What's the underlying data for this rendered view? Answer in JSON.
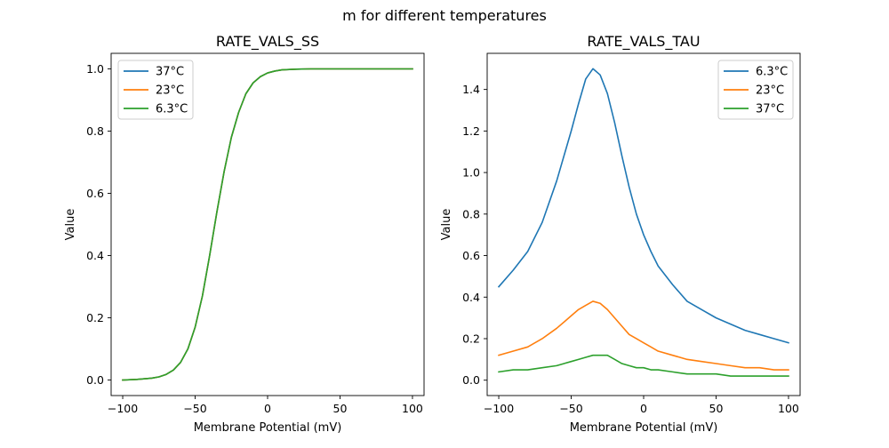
{
  "suptitle": "m for different temperatures",
  "chart_data": [
    {
      "type": "line",
      "title": "RATE_VALS_SS",
      "xlabel": "Membrane Potential (mV)",
      "ylabel": "Value",
      "xlim": [
        -108,
        108
      ],
      "ylim": [
        -0.05,
        1.05
      ],
      "xticks": [
        -100,
        -50,
        0,
        50,
        100
      ],
      "xtick_labels": [
        "−100",
        "−50",
        "0",
        "50",
        "100"
      ],
      "yticks": [
        0.0,
        0.2,
        0.4,
        0.6,
        0.8,
        1.0
      ],
      "ytick_labels": [
        "0.0",
        "0.2",
        "0.4",
        "0.6",
        "0.8",
        "1.0"
      ],
      "grid": false,
      "legend_position": "upper-left",
      "x": [
        -100,
        -90,
        -80,
        -75,
        -70,
        -65,
        -60,
        -55,
        -50,
        -45,
        -40,
        -35,
        -30,
        -25,
        -20,
        -15,
        -10,
        -5,
        0,
        5,
        10,
        20,
        30,
        50,
        100
      ],
      "series": [
        {
          "name": "37°C",
          "color": "#1f77b4",
          "values": [
            0.0,
            0.002,
            0.006,
            0.01,
            0.018,
            0.032,
            0.057,
            0.1,
            0.17,
            0.27,
            0.4,
            0.54,
            0.67,
            0.78,
            0.86,
            0.92,
            0.955,
            0.975,
            0.987,
            0.993,
            0.997,
            0.999,
            1.0,
            1.0,
            1.0
          ]
        },
        {
          "name": "23°C",
          "color": "#ff7f0e",
          "values": [
            0.0,
            0.002,
            0.006,
            0.01,
            0.018,
            0.032,
            0.057,
            0.1,
            0.17,
            0.27,
            0.4,
            0.54,
            0.67,
            0.78,
            0.86,
            0.92,
            0.955,
            0.975,
            0.987,
            0.993,
            0.997,
            0.999,
            1.0,
            1.0,
            1.0
          ]
        },
        {
          "name": "6.3°C",
          "color": "#2ca02c",
          "values": [
            0.0,
            0.002,
            0.006,
            0.01,
            0.018,
            0.032,
            0.057,
            0.1,
            0.17,
            0.27,
            0.4,
            0.54,
            0.67,
            0.78,
            0.86,
            0.92,
            0.955,
            0.975,
            0.987,
            0.993,
            0.997,
            0.999,
            1.0,
            1.0,
            1.0
          ]
        }
      ]
    },
    {
      "type": "line",
      "title": "RATE_VALS_TAU",
      "xlabel": "Membrane Potential (mV)",
      "ylabel": "Value",
      "xlim": [
        -108,
        108
      ],
      "ylim": [
        -0.074,
        1.574
      ],
      "xticks": [
        -100,
        -50,
        0,
        50,
        100
      ],
      "xtick_labels": [
        "−100",
        "−50",
        "0",
        "50",
        "100"
      ],
      "yticks": [
        0.0,
        0.2,
        0.4,
        0.6,
        0.8,
        1.0,
        1.2,
        1.4
      ],
      "ytick_labels": [
        "0.0",
        "0.2",
        "0.4",
        "0.6",
        "0.8",
        "1.0",
        "1.2",
        "1.4"
      ],
      "grid": false,
      "legend_position": "upper-right",
      "x": [
        -100,
        -90,
        -80,
        -70,
        -60,
        -50,
        -45,
        -40,
        -35,
        -30,
        -25,
        -20,
        -15,
        -10,
        -5,
        0,
        5,
        10,
        20,
        30,
        40,
        50,
        60,
        70,
        80,
        90,
        100
      ],
      "series": [
        {
          "name": "6.3°C",
          "color": "#1f77b4",
          "values": [
            0.45,
            0.53,
            0.62,
            0.76,
            0.96,
            1.2,
            1.33,
            1.45,
            1.5,
            1.47,
            1.38,
            1.24,
            1.08,
            0.93,
            0.8,
            0.7,
            0.62,
            0.55,
            0.46,
            0.38,
            0.34,
            0.3,
            0.27,
            0.24,
            0.22,
            0.2,
            0.18
          ]
        },
        {
          "name": "23°C",
          "color": "#ff7f0e",
          "values": [
            0.12,
            0.14,
            0.16,
            0.2,
            0.25,
            0.31,
            0.34,
            0.36,
            0.38,
            0.37,
            0.34,
            0.3,
            0.26,
            0.22,
            0.2,
            0.18,
            0.16,
            0.14,
            0.12,
            0.1,
            0.09,
            0.08,
            0.07,
            0.06,
            0.06,
            0.05,
            0.05
          ]
        },
        {
          "name": "37°C",
          "color": "#2ca02c",
          "values": [
            0.04,
            0.05,
            0.05,
            0.06,
            0.07,
            0.09,
            0.1,
            0.11,
            0.12,
            0.12,
            0.12,
            0.1,
            0.08,
            0.07,
            0.06,
            0.06,
            0.05,
            0.05,
            0.04,
            0.03,
            0.03,
            0.03,
            0.02,
            0.02,
            0.02,
            0.02,
            0.02
          ]
        }
      ]
    }
  ]
}
